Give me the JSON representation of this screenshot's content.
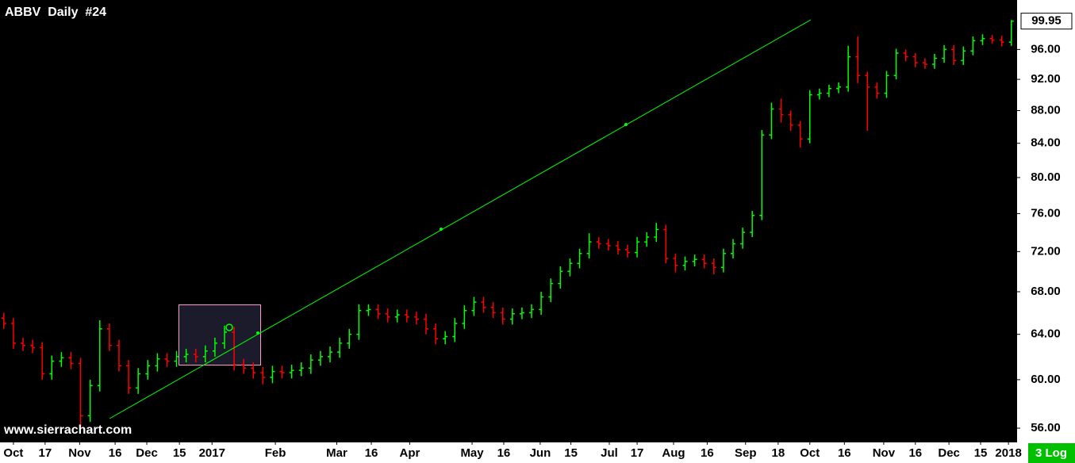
{
  "chart_data": {
    "type": "ohlc",
    "title": "ABBV  Daily  #24",
    "watermark": "www.sierrachart.com",
    "scale_label": "3 Log",
    "log": true,
    "up_color": "#00ff00",
    "down_color": "#ff0000",
    "ylim": [
      55.25,
      103
    ],
    "xlim": [
      -0.4,
      105.6
    ],
    "yticks": [
      {
        "value": 56,
        "label": "56.00"
      },
      {
        "value": 60,
        "label": "60.00"
      },
      {
        "value": 64,
        "label": "64.00"
      },
      {
        "value": 68,
        "label": "68.00"
      },
      {
        "value": 72,
        "label": "72.00"
      },
      {
        "value": 76,
        "label": "76.00"
      },
      {
        "value": 80,
        "label": "80.00"
      },
      {
        "value": 84,
        "label": "84.00"
      },
      {
        "value": 88,
        "label": "88.00"
      },
      {
        "value": 92,
        "label": "92.00"
      },
      {
        "value": 96,
        "label": "96.00"
      }
    ],
    "xticks": [
      {
        "value": 1.0,
        "label": "Oct"
      },
      {
        "value": 4.3,
        "label": "17"
      },
      {
        "value": 7.9,
        "label": "Nov"
      },
      {
        "value": 11.6,
        "label": "16"
      },
      {
        "value": 14.9,
        "label": "Dec"
      },
      {
        "value": 18.3,
        "label": "15"
      },
      {
        "value": 21.7,
        "label": "2017"
      },
      {
        "value": 28.3,
        "label": "Feb"
      },
      {
        "value": 34.7,
        "label": "Mar"
      },
      {
        "value": 38.3,
        "label": "16"
      },
      {
        "value": 42.3,
        "label": "Apr"
      },
      {
        "value": 48.8,
        "label": "May"
      },
      {
        "value": 52.1,
        "label": "16"
      },
      {
        "value": 55.9,
        "label": "Jun"
      },
      {
        "value": 59.1,
        "label": "15"
      },
      {
        "value": 63.1,
        "label": "Jul"
      },
      {
        "value": 66.0,
        "label": "17"
      },
      {
        "value": 69.8,
        "label": "Aug"
      },
      {
        "value": 73.3,
        "label": "16"
      },
      {
        "value": 77.3,
        "label": "Sep"
      },
      {
        "value": 80.7,
        "label": "18"
      },
      {
        "value": 84.0,
        "label": "Oct"
      },
      {
        "value": 87.6,
        "label": "16"
      },
      {
        "value": 91.7,
        "label": "Nov"
      },
      {
        "value": 95.0,
        "label": "16"
      },
      {
        "value": 98.5,
        "label": "Dec"
      },
      {
        "value": 101.8,
        "label": "15"
      },
      {
        "value": 104.7,
        "label": "2018"
      }
    ],
    "open": [
      65.5,
      65.0,
      63.2,
      63.0,
      62.8,
      60.5,
      61.6,
      61.9,
      61.4,
      57.0,
      59.5,
      64.5,
      63.0,
      61.2,
      59.3,
      60.5,
      61.2,
      61.8,
      61.6,
      62.0,
      62.2,
      62.0,
      62.5,
      63.2,
      64.2,
      61.3,
      61.0,
      60.6,
      60.2,
      60.7,
      60.6,
      60.8,
      61.0,
      61.7,
      62.0,
      62.4,
      63.2,
      64.0,
      66.2,
      66.3,
      65.9,
      65.6,
      65.8,
      65.6,
      65.4,
      64.5,
      63.6,
      63.8,
      65.0,
      66.2,
      67.0,
      66.5,
      66.0,
      65.4,
      65.9,
      66.0,
      66.3,
      67.5,
      68.8,
      70.0,
      70.8,
      71.8,
      73.0,
      72.8,
      72.6,
      72.2,
      71.9,
      73.0,
      73.5,
      74.3,
      71.3,
      70.6,
      71.0,
      71.2,
      70.8,
      70.4,
      71.8,
      72.8,
      74.0,
      75.8,
      85.0,
      88.2,
      87.5,
      86.2,
      84.5,
      90.0,
      90.2,
      90.8,
      91.0,
      95.0,
      92.5,
      91.0,
      90.2,
      92.5,
      95.5,
      95.0,
      94.2,
      94.0,
      94.8,
      96.0,
      94.5,
      95.8,
      97.2,
      97.5,
      97.3,
      97.0
    ],
    "high": [
      66.0,
      65.5,
      63.7,
      63.5,
      63.3,
      62.1,
      62.4,
      62.4,
      61.9,
      60.0,
      65.3,
      65.0,
      63.5,
      61.7,
      61.0,
      61.7,
      62.3,
      62.3,
      62.5,
      62.7,
      62.7,
      63.0,
      63.7,
      64.8,
      64.7,
      61.8,
      61.5,
      61.1,
      61.2,
      61.2,
      61.3,
      61.5,
      62.2,
      62.5,
      62.9,
      63.7,
      64.5,
      66.8,
      66.8,
      66.8,
      66.4,
      66.3,
      66.3,
      66.1,
      65.9,
      65.0,
      64.3,
      65.5,
      66.7,
      67.5,
      67.5,
      67.0,
      66.5,
      66.4,
      66.5,
      66.8,
      68.0,
      69.3,
      70.5,
      71.3,
      72.3,
      73.9,
      73.5,
      73.3,
      73.1,
      72.7,
      73.5,
      74.0,
      75.0,
      74.8,
      71.8,
      71.5,
      71.7,
      71.7,
      71.3,
      72.3,
      73.3,
      74.5,
      76.3,
      85.6,
      89.0,
      89.5,
      88.0,
      86.7,
      90.6,
      90.8,
      91.3,
      91.6,
      96.5,
      97.8,
      93.0,
      91.6,
      93.1,
      96.1,
      96.0,
      95.5,
      94.8,
      95.4,
      96.6,
      96.6,
      96.4,
      97.8,
      98.1,
      98.0,
      97.9,
      100.1
    ],
    "low": [
      64.5,
      62.7,
      62.5,
      62.3,
      60.0,
      60.0,
      61.1,
      60.9,
      56.0,
      56.5,
      59.0,
      62.5,
      60.7,
      58.8,
      58.8,
      60.0,
      60.7,
      61.1,
      61.1,
      61.5,
      61.5,
      61.5,
      62.0,
      62.7,
      60.8,
      60.5,
      60.1,
      59.6,
      59.7,
      60.1,
      60.1,
      60.3,
      60.5,
      61.2,
      61.5,
      61.9,
      62.7,
      63.5,
      65.7,
      65.4,
      65.1,
      65.1,
      65.1,
      64.9,
      64.0,
      63.1,
      63.1,
      63.3,
      64.5,
      65.7,
      66.0,
      65.5,
      64.9,
      64.9,
      65.4,
      65.5,
      65.8,
      67.0,
      68.3,
      69.5,
      70.3,
      71.3,
      72.3,
      72.1,
      71.7,
      71.4,
      71.4,
      72.5,
      73.0,
      70.8,
      69.9,
      70.1,
      70.5,
      70.3,
      69.7,
      69.9,
      71.3,
      72.3,
      73.5,
      75.3,
      84.5,
      86.5,
      85.5,
      83.5,
      84.0,
      89.4,
      89.7,
      90.2,
      90.4,
      91.5,
      85.5,
      89.5,
      89.6,
      92.0,
      94.4,
      93.6,
      93.4,
      93.4,
      94.2,
      93.9,
      93.9,
      95.2,
      96.6,
      96.8,
      96.4,
      96.5
    ],
    "close": [
      65.0,
      63.2,
      63.0,
      62.8,
      60.5,
      61.6,
      61.9,
      61.4,
      57.0,
      59.5,
      64.5,
      63.0,
      61.2,
      59.3,
      60.5,
      61.2,
      61.8,
      61.6,
      62.0,
      62.2,
      62.0,
      62.5,
      63.2,
      64.2,
      61.3,
      61.0,
      60.6,
      60.2,
      60.7,
      60.6,
      60.8,
      61.0,
      61.7,
      62.0,
      62.4,
      63.2,
      64.0,
      66.2,
      66.3,
      65.9,
      65.6,
      65.8,
      65.6,
      65.4,
      64.5,
      63.6,
      63.8,
      65.0,
      66.2,
      67.0,
      66.5,
      66.0,
      65.4,
      65.9,
      66.0,
      66.3,
      67.5,
      68.8,
      70.0,
      70.8,
      71.8,
      73.0,
      72.8,
      72.6,
      72.2,
      71.9,
      73.0,
      73.5,
      74.3,
      71.3,
      70.6,
      71.0,
      71.2,
      70.8,
      70.4,
      71.8,
      72.8,
      74.0,
      75.8,
      85.0,
      88.2,
      87.5,
      86.2,
      84.5,
      90.0,
      90.2,
      90.8,
      91.0,
      95.0,
      92.5,
      91.0,
      90.2,
      92.5,
      95.5,
      95.0,
      94.2,
      94.0,
      94.8,
      96.0,
      94.5,
      95.8,
      97.2,
      97.5,
      97.3,
      97.0,
      99.95
    ]
  }
}
